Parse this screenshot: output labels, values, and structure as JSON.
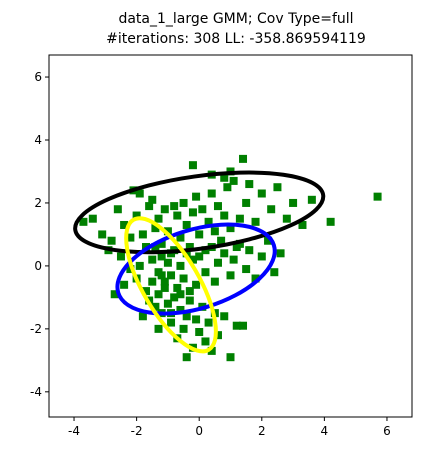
{
  "chart_data": {
    "type": "scatter",
    "title_line1": "data_1_large GMM; Cov Type=full",
    "title_line2": "#iterations: 308 LL: -358.869594119",
    "xlabel": "",
    "ylabel": "",
    "xlim": [
      -4.8,
      6.8
    ],
    "ylim": [
      -4.8,
      6.7
    ],
    "x_ticks": [
      -4,
      -2,
      0,
      2,
      4,
      6
    ],
    "y_ticks": [
      -4,
      -2,
      0,
      2,
      4,
      6
    ],
    "grid": false,
    "marker": "square",
    "point_color": "#008000",
    "points": [
      [
        -3.7,
        1.4
      ],
      [
        -3.4,
        1.5
      ],
      [
        -3.1,
        1.0
      ],
      [
        -2.9,
        0.5
      ],
      [
        -2.8,
        0.8
      ],
      [
        -2.6,
        1.8
      ],
      [
        -2.5,
        0.3
      ],
      [
        -2.4,
        1.3
      ],
      [
        -2.2,
        0.9
      ],
      [
        -2.1,
        2.4
      ],
      [
        -2.0,
        1.6
      ],
      [
        -1.9,
        2.3
      ],
      [
        -1.8,
        1.0
      ],
      [
        -1.7,
        0.6
      ],
      [
        -1.6,
        1.9
      ],
      [
        -1.5,
        2.1
      ],
      [
        -1.4,
        1.2
      ],
      [
        -1.3,
        1.5
      ],
      [
        -1.2,
        0.7
      ],
      [
        -1.1,
        1.8
      ],
      [
        -1.0,
        1.1
      ],
      [
        -0.9,
        0.4
      ],
      [
        -0.8,
        1.9
      ],
      [
        -0.7,
        1.6
      ],
      [
        -0.6,
        0.9
      ],
      [
        -0.5,
        2.0
      ],
      [
        -0.4,
        1.3
      ],
      [
        -0.3,
        0.6
      ],
      [
        -0.2,
        1.7
      ],
      [
        -0.1,
        2.2
      ],
      [
        0.0,
        1.0
      ],
      [
        0.1,
        1.8
      ],
      [
        0.2,
        0.5
      ],
      [
        0.3,
        1.4
      ],
      [
        0.4,
        2.3
      ],
      [
        0.5,
        1.1
      ],
      [
        0.6,
        1.9
      ],
      [
        0.7,
        0.8
      ],
      [
        0.8,
        1.6
      ],
      [
        0.9,
        2.5
      ],
      [
        1.0,
        1.2
      ],
      [
        1.1,
        2.7
      ],
      [
        1.2,
        0.6
      ],
      [
        1.3,
        1.5
      ],
      [
        1.4,
        3.4
      ],
      [
        1.5,
        2.0
      ],
      [
        1.6,
        2.6
      ],
      [
        1.8,
        1.4
      ],
      [
        2.0,
        2.3
      ],
      [
        2.3,
        1.8
      ],
      [
        2.5,
        2.5
      ],
      [
        2.8,
        1.5
      ],
      [
        3.0,
        2.0
      ],
      [
        3.3,
        1.3
      ],
      [
        3.6,
        2.1
      ],
      [
        4.2,
        1.4
      ],
      [
        5.7,
        2.2
      ],
      [
        -0.2,
        3.2
      ],
      [
        0.4,
        2.9
      ],
      [
        1.0,
        3.0
      ],
      [
        0.8,
        2.8
      ],
      [
        -1.5,
        0.2
      ],
      [
        -1.3,
        -0.2
      ],
      [
        -1.2,
        0.3
      ],
      [
        -1.1,
        -0.5
      ],
      [
        -1.0,
        0.1
      ],
      [
        -0.9,
        -0.3
      ],
      [
        -0.8,
        0.5
      ],
      [
        -0.7,
        -0.7
      ],
      [
        -0.6,
        0.0
      ],
      [
        -0.5,
        -0.4
      ],
      [
        -0.4,
        0.4
      ],
      [
        -0.3,
        -0.8
      ],
      [
        -0.2,
        0.2
      ],
      [
        -0.1,
        -0.6
      ],
      [
        0.0,
        0.3
      ],
      [
        0.2,
        -0.2
      ],
      [
        0.4,
        0.6
      ],
      [
        0.5,
        -0.5
      ],
      [
        0.6,
        0.1
      ],
      [
        0.8,
        0.4
      ],
      [
        1.0,
        -0.3
      ],
      [
        1.1,
        0.2
      ],
      [
        1.3,
        0.7
      ],
      [
        1.5,
        -0.1
      ],
      [
        1.6,
        0.5
      ],
      [
        1.8,
        -0.4
      ],
      [
        2.0,
        0.3
      ],
      [
        2.2,
        0.8
      ],
      [
        2.4,
        -0.2
      ],
      [
        2.6,
        0.4
      ],
      [
        -2.7,
        -0.9
      ],
      [
        -2.4,
        -0.6
      ],
      [
        -2.2,
        -0.1
      ],
      [
        -2.0,
        -0.4
      ],
      [
        -1.8,
        -1.6
      ],
      [
        -1.7,
        -0.8
      ],
      [
        -1.6,
        -1.1
      ],
      [
        -1.5,
        -0.5
      ],
      [
        -1.4,
        -1.3
      ],
      [
        -1.3,
        -0.9
      ],
      [
        -1.2,
        -1.5
      ],
      [
        -1.1,
        -0.7
      ],
      [
        -1.0,
        -1.2
      ],
      [
        -0.9,
        -1.8
      ],
      [
        -0.8,
        -1.0
      ],
      [
        -0.7,
        -2.3
      ],
      [
        -0.6,
        -1.4
      ],
      [
        -0.5,
        -2.0
      ],
      [
        -0.4,
        -1.6
      ],
      [
        -0.3,
        -1.1
      ],
      [
        -0.2,
        -2.6
      ],
      [
        -0.1,
        -1.7
      ],
      [
        0.0,
        -2.1
      ],
      [
        0.1,
        -1.3
      ],
      [
        0.2,
        -2.4
      ],
      [
        0.3,
        -1.8
      ],
      [
        0.4,
        -2.7
      ],
      [
        0.5,
        -1.5
      ],
      [
        0.6,
        -2.2
      ],
      [
        0.8,
        -1.6
      ],
      [
        1.0,
        -2.9
      ],
      [
        1.2,
        -1.9
      ],
      [
        1.4,
        -1.9
      ],
      [
        -0.4,
        -2.9
      ],
      [
        -1.3,
        -2.0
      ],
      [
        -0.9,
        -1.5
      ],
      [
        -1.2,
        -0.3
      ],
      [
        -0.6,
        -0.9
      ],
      [
        -1.9,
        0.0
      ],
      [
        -1.4,
        0.6
      ]
    ],
    "ellipses": [
      {
        "cx": 0.0,
        "cy": 1.7,
        "rx": 4.0,
        "ry": 1.15,
        "angle_deg": 8,
        "color": "#000000"
      },
      {
        "cx": -0.1,
        "cy": -0.1,
        "rx": 2.6,
        "ry": 1.25,
        "angle_deg": 17,
        "color": "#0000ff"
      },
      {
        "cx": -0.9,
        "cy": -0.6,
        "rx": 2.4,
        "ry": 0.9,
        "angle_deg": -60,
        "color": "#ffff00"
      }
    ]
  }
}
